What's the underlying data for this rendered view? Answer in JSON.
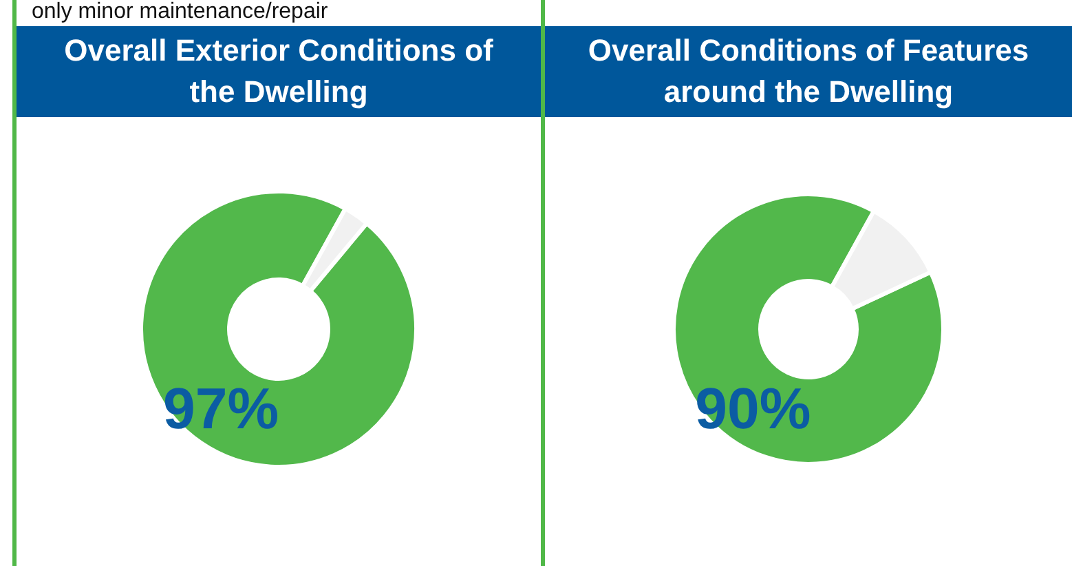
{
  "chart_data": [
    {
      "type": "donut",
      "title": "Overall Exterior Conditions of the Dwelling",
      "annotations": [
        "only minor maintenance/repair"
      ],
      "categories": [
        null,
        null
      ],
      "values": [
        97,
        3
      ],
      "colors": [
        "#52b84b",
        "#f1f1f1"
      ],
      "value_labels": [
        "97%",
        null
      ]
    },
    {
      "type": "donut",
      "title": "Overall Conditions of Features around the Dwelling",
      "categories": [
        null,
        null
      ],
      "values": [
        90,
        10
      ],
      "colors": [
        "#52b84b",
        "#f1f1f1"
      ],
      "value_labels": [
        "90%",
        null
      ]
    }
  ]
}
